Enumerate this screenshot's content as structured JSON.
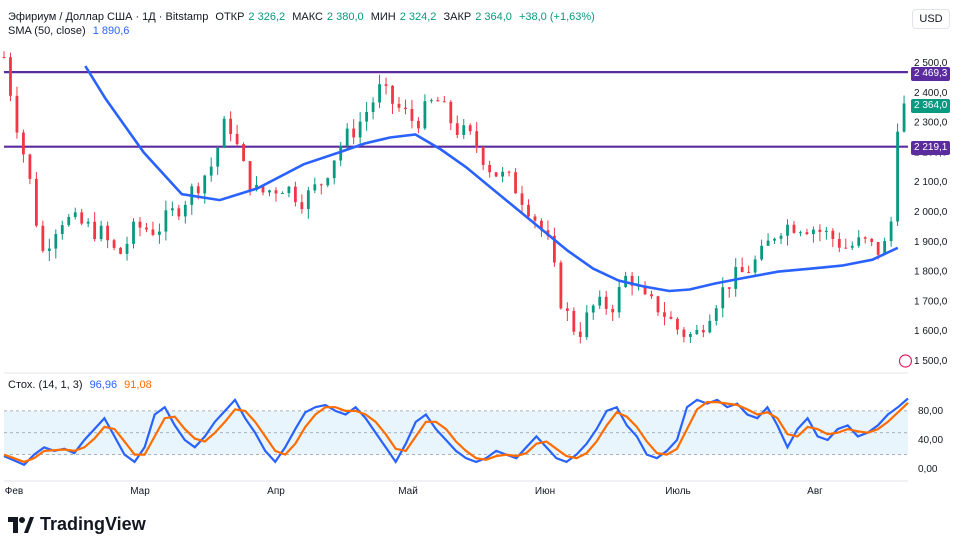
{
  "legend": {
    "symbol": "Эфириум / Доллар США · 1Д · Bitstamp",
    "open_label": "ОТКР",
    "open": "2 326,2",
    "high_label": "МАКС",
    "high": "2 380,0",
    "low_label": "МИН",
    "low": "2 324,2",
    "close_label": "ЗАКР",
    "close": "2 364,0",
    "change": "+38,0 (+1,63%)",
    "sma_label": "SMA (50, close)",
    "sma_value": "1 890,6",
    "stoch_label": "Стох. (14, 1, 3)",
    "stoch_k": "96,96",
    "stoch_d": "91,08"
  },
  "currency_button": "USD",
  "brand": "TradingView",
  "price_tags": {
    "resistance": "2 469,3",
    "last": "2 364,0",
    "support": "2 219,1"
  },
  "colors": {
    "up": "#089981",
    "down": "#f23645",
    "sma": "#2962ff",
    "level_lines": "#5b2c9f",
    "stoch_k": "#2962ff",
    "stoch_d": "#ff6d00",
    "band_fill": "#e3f2fd"
  },
  "chart_data": [
    {
      "type": "candlestick",
      "title": "Эфириум / Доллар США · 1Д · Bitstamp",
      "y_ticks": [
        "2 500,0",
        "2 400,0",
        "2 300,0",
        "2 200,0",
        "2 100,0",
        "2 000,0",
        "1 900,0",
        "1 800,0",
        "1 700,0",
        "1 600,0",
        "1 500,0"
      ],
      "y_tick_values": [
        2500,
        2400,
        2300,
        2200,
        2100,
        2000,
        1900,
        1800,
        1700,
        1600,
        1500
      ],
      "x_ticks": [
        "Фев",
        "Мар",
        "Апр",
        "Май",
        "Июн",
        "Июль",
        "Авг"
      ],
      "horizontal_levels": [
        2469.3,
        2219.1
      ],
      "approx_close_path": [
        [
          0,
          2520
        ],
        [
          5,
          2300
        ],
        [
          10,
          2110
        ],
        [
          15,
          1860
        ],
        [
          22,
          1980
        ],
        [
          30,
          1960
        ],
        [
          38,
          1930
        ],
        [
          45,
          1850
        ],
        [
          52,
          1950
        ],
        [
          60,
          1940
        ],
        [
          68,
          2010
        ],
        [
          75,
          2080
        ],
        [
          82,
          2160
        ],
        [
          88,
          2320
        ],
        [
          95,
          2130
        ],
        [
          100,
          2060
        ],
        [
          110,
          2090
        ],
        [
          118,
          2040
        ],
        [
          125,
          2100
        ],
        [
          132,
          2220
        ],
        [
          140,
          2300
        ],
        [
          148,
          2410
        ],
        [
          155,
          2350
        ],
        [
          162,
          2300
        ],
        [
          170,
          2380
        ],
        [
          178,
          2280
        ],
        [
          185,
          2240
        ],
        [
          192,
          2140
        ],
        [
          200,
          2100
        ],
        [
          208,
          2000
        ],
        [
          214,
          1900
        ],
        [
          220,
          1680
        ],
        [
          226,
          1590
        ],
        [
          232,
          1680
        ],
        [
          240,
          1690
        ],
        [
          246,
          1800
        ],
        [
          252,
          1700
        ],
        [
          258,
          1680
        ],
        [
          266,
          1600
        ],
        [
          272,
          1580
        ],
        [
          280,
          1700
        ],
        [
          286,
          1770
        ],
        [
          292,
          1800
        ],
        [
          298,
          1850
        ],
        [
          305,
          1950
        ],
        [
          312,
          1960
        ],
        [
          318,
          1950
        ],
        [
          325,
          1920
        ],
        [
          332,
          1880
        ],
        [
          338,
          1900
        ],
        [
          344,
          1870
        ],
        [
          349,
          1900
        ],
        [
          351,
          2290
        ],
        [
          356,
          2364
        ]
      ],
      "sma_path": [
        [
          32,
          2490
        ],
        [
          40,
          2380
        ],
        [
          55,
          2200
        ],
        [
          70,
          2060
        ],
        [
          85,
          2040
        ],
        [
          100,
          2080
        ],
        [
          118,
          2160
        ],
        [
          132,
          2200
        ],
        [
          142,
          2230
        ],
        [
          152,
          2250
        ],
        [
          162,
          2260
        ],
        [
          172,
          2210
        ],
        [
          182,
          2150
        ],
        [
          192,
          2080
        ],
        [
          202,
          2010
        ],
        [
          212,
          1940
        ],
        [
          222,
          1870
        ],
        [
          232,
          1810
        ],
        [
          242,
          1770
        ],
        [
          252,
          1750
        ],
        [
          262,
          1735
        ],
        [
          270,
          1740
        ],
        [
          280,
          1760
        ],
        [
          292,
          1780
        ],
        [
          305,
          1800
        ],
        [
          318,
          1810
        ],
        [
          330,
          1820
        ],
        [
          342,
          1840
        ],
        [
          352,
          1880
        ]
      ],
      "ylim": [
        1450,
        2560
      ]
    },
    {
      "type": "line",
      "title": "Стох. (14, 1, 3)",
      "y_ticks": [
        "80,00",
        "40,00",
        "0,00"
      ],
      "y_tick_values": [
        80,
        40,
        0
      ],
      "ylim": [
        -8,
        110
      ],
      "band": [
        20,
        80
      ],
      "series": [
        {
          "name": "K",
          "values": [
            18,
            12,
            6,
            20,
            30,
            25,
            28,
            22,
            40,
            55,
            70,
            45,
            20,
            10,
            30,
            75,
            85,
            60,
            40,
            30,
            45,
            65,
            80,
            95,
            70,
            50,
            25,
            10,
            30,
            55,
            78,
            85,
            88,
            80,
            75,
            85,
            70,
            50,
            30,
            10,
            35,
            65,
            75,
            55,
            40,
            25,
            15,
            10,
            15,
            25,
            20,
            15,
            30,
            45,
            30,
            15,
            10,
            20,
            35,
            55,
            80,
            85,
            60,
            45,
            20,
            15,
            25,
            40,
            85,
            95,
            90,
            95,
            85,
            90,
            75,
            70,
            85,
            60,
            30,
            55,
            70,
            45,
            40,
            55,
            60,
            45,
            50,
            60,
            75,
            85,
            97
          ]
        },
        {
          "name": "D",
          "values": [
            20,
            15,
            10,
            15,
            25,
            26,
            27,
            25,
            30,
            42,
            58,
            55,
            38,
            20,
            20,
            45,
            70,
            72,
            55,
            42,
            38,
            50,
            65,
            82,
            80,
            65,
            45,
            25,
            20,
            35,
            58,
            75,
            85,
            85,
            80,
            80,
            75,
            65,
            48,
            28,
            25,
            45,
            65,
            65,
            55,
            38,
            25,
            15,
            13,
            18,
            20,
            18,
            22,
            35,
            38,
            28,
            18,
            15,
            22,
            38,
            60,
            78,
            72,
            58,
            38,
            22,
            20,
            28,
            55,
            82,
            92,
            92,
            90,
            88,
            82,
            75,
            78,
            70,
            48,
            45,
            58,
            55,
            48,
            50,
            55,
            52,
            50,
            55,
            65,
            78,
            91
          ]
        }
      ]
    }
  ]
}
